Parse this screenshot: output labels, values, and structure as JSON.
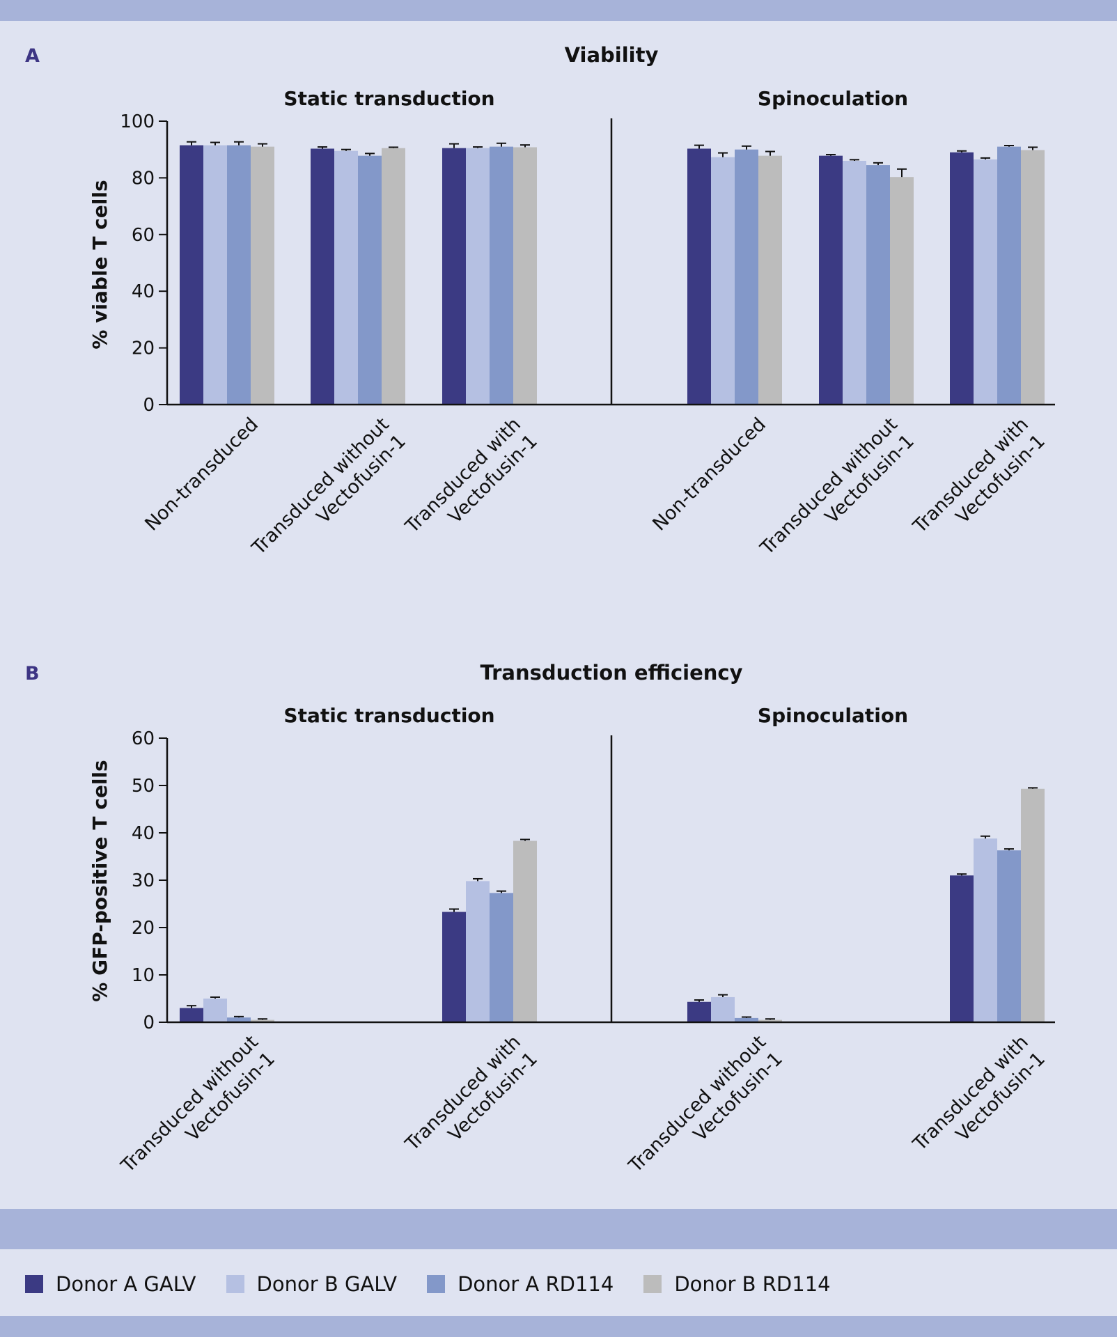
{
  "legend": [
    {
      "name": "Donor A GALV",
      "color": "#3b3a83"
    },
    {
      "name": "Donor B GALV",
      "color": "#b5c0e2"
    },
    {
      "name": "Donor A RD114",
      "color": "#8398c9"
    },
    {
      "name": "Donor B RD114",
      "color": "#bcbcbc"
    }
  ],
  "chart_data": [
    {
      "type": "bar",
      "panel": "A",
      "title": "Viability",
      "ylabel": "% viable T cells",
      "ylim": [
        0,
        100
      ],
      "yticks": [
        "0",
        "20",
        "40",
        "60",
        "80",
        "100"
      ],
      "series_names": [
        "Donor A GALV",
        "Donor B GALV",
        "Donor A RD114",
        "Donor B RD114"
      ],
      "groups": [
        {
          "title": "Static transduction",
          "categories": [
            {
              "lines": [
                "Non-transduced"
              ],
              "values": [
                91.5,
                91.5,
                91.5,
                91.0
              ],
              "errors": [
                1.2,
                1.0,
                1.2,
                1.0
              ]
            },
            {
              "lines": [
                "Transduced without",
                "Vectofusin-1"
              ],
              "values": [
                90.3,
                89.5,
                87.8,
                90.5
              ],
              "errors": [
                0.6,
                0.5,
                0.8,
                0.3
              ]
            },
            {
              "lines": [
                "Transduced with",
                "Vectofusin-1"
              ],
              "values": [
                90.5,
                90.5,
                91.0,
                90.8
              ],
              "errors": [
                1.5,
                0.4,
                1.2,
                0.8
              ]
            }
          ]
        },
        {
          "title": "Spinoculation",
          "categories": [
            {
              "lines": [
                "Non-transduced"
              ],
              "values": [
                90.3,
                87.3,
                90.0,
                87.8
              ],
              "errors": [
                1.2,
                1.5,
                1.2,
                1.5
              ]
            },
            {
              "lines": [
                "Transduced without",
                "Vectofusin-1"
              ],
              "values": [
                87.8,
                86.0,
                84.5,
                80.3
              ],
              "errors": [
                0.4,
                0.4,
                0.8,
                2.8
              ]
            },
            {
              "lines": [
                "Transduced with",
                "Vectofusin-1"
              ],
              "values": [
                89.0,
                86.5,
                91.0,
                89.8
              ],
              "errors": [
                0.5,
                0.5,
                0.4,
                1.0
              ]
            }
          ]
        }
      ]
    },
    {
      "type": "bar",
      "panel": "B",
      "title": "Transduction efficiency",
      "ylabel": "% GFP-positive T cells",
      "ylim": [
        0,
        60
      ],
      "yticks": [
        "0",
        "10",
        "20",
        "30",
        "40",
        "50",
        "60"
      ],
      "series_names": [
        "Donor A GALV",
        "Donor B GALV",
        "Donor A RD114",
        "Donor B RD114"
      ],
      "groups": [
        {
          "title": "Static transduction",
          "categories": [
            {
              "lines": [
                "Transduced without",
                "Vectofusin-1"
              ],
              "values": [
                3.0,
                5.0,
                1.0,
                0.5
              ],
              "errors": [
                0.5,
                0.3,
                0.2,
                0.2
              ]
            },
            {
              "lines": [
                "Transduced with",
                "Vectofusin-1"
              ],
              "values": [
                23.3,
                29.8,
                27.3,
                38.3
              ],
              "errors": [
                0.6,
                0.5,
                0.4,
                0.3
              ]
            }
          ]
        },
        {
          "title": "Spinoculation",
          "categories": [
            {
              "lines": [
                "Transduced without",
                "Vectofusin-1"
              ],
              "values": [
                4.3,
                5.3,
                0.9,
                0.5
              ],
              "errors": [
                0.4,
                0.5,
                0.2,
                0.2
              ]
            },
            {
              "lines": [
                "Transduced with",
                "Vectofusin-1"
              ],
              "values": [
                31.0,
                38.8,
                36.3,
                49.3
              ],
              "errors": [
                0.3,
                0.5,
                0.3,
                0.2
              ]
            }
          ]
        }
      ]
    }
  ]
}
